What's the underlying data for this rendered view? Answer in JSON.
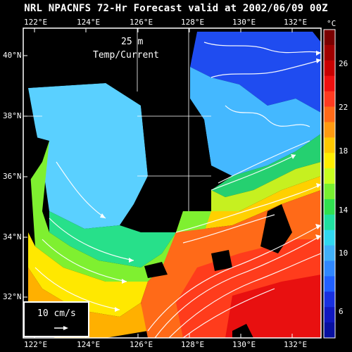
{
  "title": "NRL NPACNFS 72-Hr Forecast valid at 2002/06/09 00Z",
  "depth_label": "25 m",
  "field_label": "Temp/Current",
  "units": "°C",
  "scale_label": "10 cm/s",
  "lon_labels": [
    "122°E",
    "124°E",
    "126°E",
    "128°E",
    "130°E",
    "132°E"
  ],
  "lat_labels": [
    "40°N",
    "38°N",
    "36°N",
    "34°N",
    "32°N"
  ],
  "colorbar_ticks": [
    "26",
    "22",
    "18",
    "14",
    "10",
    "6"
  ],
  "colorbar_colors": [
    "#7a0000",
    "#a00000",
    "#c80000",
    "#ee1010",
    "#ff3a20",
    "#ff6a18",
    "#ff9a10",
    "#ffc800",
    "#ffee00",
    "#c8ff20",
    "#78f030",
    "#30e050",
    "#20e0a0",
    "#30d8f0",
    "#40b0f8",
    "#3088ff",
    "#2060ff",
    "#1830e0",
    "#1018c0",
    "#0810a0"
  ]
}
